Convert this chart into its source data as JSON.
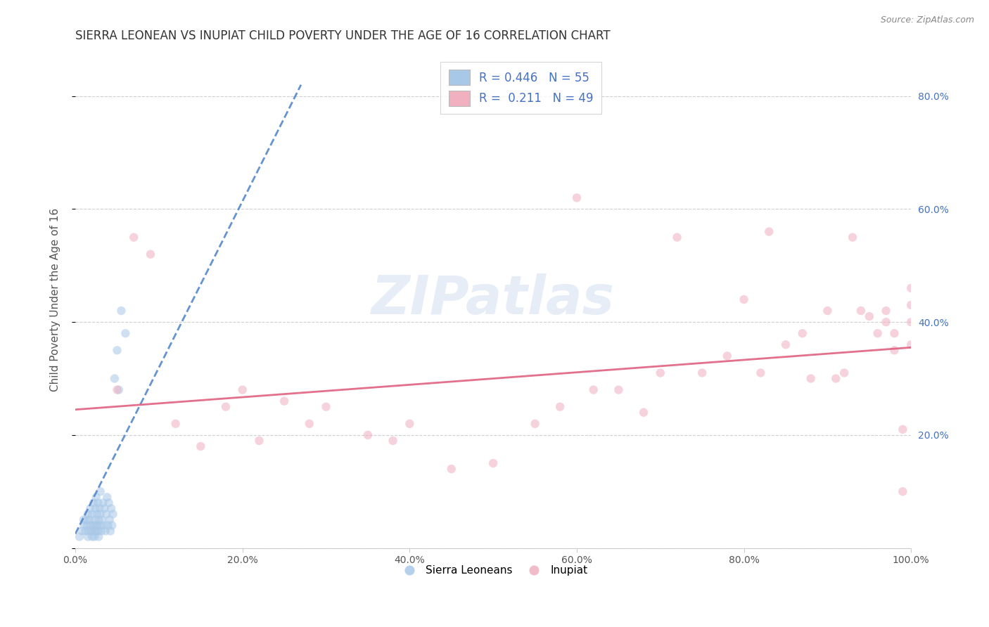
{
  "title": "SIERRA LEONEAN VS INUPIAT CHILD POVERTY UNDER THE AGE OF 16 CORRELATION CHART",
  "source": "Source: ZipAtlas.com",
  "ylabel": "Child Poverty Under the Age of 16",
  "watermark": "ZIPatlas",
  "legend_entries": [
    {
      "label": "R = 0.446   N = 55",
      "color": "#aac4e8"
    },
    {
      "label": "R =  0.211   N = 49",
      "color": "#f5b8c4"
    }
  ],
  "legend_labels": [
    "Sierra Leoneans",
    "Inupiat"
  ],
  "xlim": [
    0.0,
    1.0
  ],
  "ylim": [
    0.0,
    0.88
  ],
  "xticks": [
    0.0,
    0.2,
    0.4,
    0.6,
    0.8,
    1.0
  ],
  "yticks": [
    0.0,
    0.2,
    0.4,
    0.6,
    0.8
  ],
  "xtick_labels": [
    "0.0%",
    "20.0%",
    "40.0%",
    "60.0%",
    "80.0%",
    "100.0%"
  ],
  "right_ytick_labels": [
    "",
    "20.0%",
    "40.0%",
    "60.0%",
    "80.0%"
  ],
  "title_color": "#333333",
  "source_color": "#888888",
  "blue_scatter_color": "#a8c8e8",
  "pink_scatter_color": "#f0b0c0",
  "blue_line_color": "#5588cc",
  "pink_line_color": "#e06080",
  "blue_scatter_x": [
    0.005,
    0.008,
    0.01,
    0.01,
    0.012,
    0.013,
    0.014,
    0.015,
    0.015,
    0.016,
    0.017,
    0.018,
    0.018,
    0.019,
    0.02,
    0.02,
    0.021,
    0.022,
    0.022,
    0.023,
    0.023,
    0.024,
    0.024,
    0.025,
    0.025,
    0.026,
    0.026,
    0.027,
    0.027,
    0.028,
    0.028,
    0.029,
    0.03,
    0.03,
    0.03,
    0.031,
    0.032,
    0.033,
    0.034,
    0.035,
    0.036,
    0.037,
    0.038,
    0.039,
    0.04,
    0.041,
    0.042,
    0.043,
    0.044,
    0.045,
    0.047,
    0.05,
    0.052,
    0.055,
    0.06
  ],
  "blue_scatter_y": [
    0.02,
    0.03,
    0.04,
    0.05,
    0.03,
    0.05,
    0.04,
    0.02,
    0.06,
    0.03,
    0.05,
    0.04,
    0.07,
    0.03,
    0.02,
    0.06,
    0.04,
    0.03,
    0.08,
    0.02,
    0.05,
    0.04,
    0.07,
    0.03,
    0.09,
    0.04,
    0.06,
    0.03,
    0.08,
    0.05,
    0.02,
    0.07,
    0.04,
    0.06,
    0.1,
    0.03,
    0.05,
    0.08,
    0.04,
    0.07,
    0.03,
    0.06,
    0.09,
    0.04,
    0.08,
    0.05,
    0.03,
    0.07,
    0.04,
    0.06,
    0.3,
    0.35,
    0.28,
    0.42,
    0.38
  ],
  "pink_scatter_x": [
    0.05,
    0.07,
    0.09,
    0.12,
    0.15,
    0.18,
    0.2,
    0.22,
    0.25,
    0.28,
    0.3,
    0.35,
    0.38,
    0.4,
    0.45,
    0.5,
    0.55,
    0.58,
    0.6,
    0.62,
    0.65,
    0.68,
    0.7,
    0.72,
    0.75,
    0.78,
    0.8,
    0.82,
    0.83,
    0.85,
    0.87,
    0.88,
    0.9,
    0.91,
    0.92,
    0.93,
    0.94,
    0.95,
    0.96,
    0.97,
    0.97,
    0.98,
    0.98,
    0.99,
    0.99,
    1.0,
    1.0,
    1.0,
    1.0
  ],
  "pink_scatter_y": [
    0.28,
    0.55,
    0.52,
    0.22,
    0.18,
    0.25,
    0.28,
    0.19,
    0.26,
    0.22,
    0.25,
    0.2,
    0.19,
    0.22,
    0.14,
    0.15,
    0.22,
    0.25,
    0.62,
    0.28,
    0.28,
    0.24,
    0.31,
    0.55,
    0.31,
    0.34,
    0.44,
    0.31,
    0.56,
    0.36,
    0.38,
    0.3,
    0.42,
    0.3,
    0.31,
    0.55,
    0.42,
    0.41,
    0.38,
    0.4,
    0.42,
    0.38,
    0.35,
    0.1,
    0.21,
    0.4,
    0.43,
    0.46,
    0.36
  ],
  "blue_trend_x": [
    0.0,
    0.27
  ],
  "blue_trend_y": [
    0.025,
    0.82
  ],
  "pink_trend_x": [
    0.0,
    1.0
  ],
  "pink_trend_y": [
    0.245,
    0.355
  ],
  "bg_color": "#ffffff",
  "grid_color": "#d0d0d0",
  "title_fontsize": 12,
  "axis_label_fontsize": 11,
  "tick_fontsize": 10,
  "scatter_size": 80,
  "scatter_alpha": 0.55,
  "line_alpha": 0.9
}
